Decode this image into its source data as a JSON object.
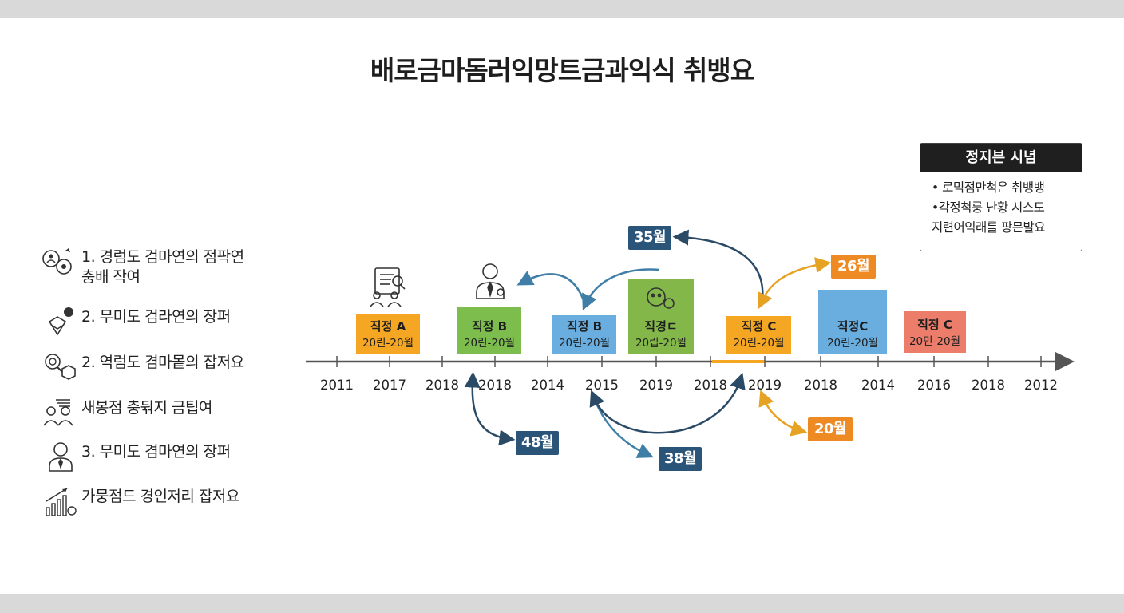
{
  "title": "배로금마돔러익망트금과익식 취뱅요",
  "list": [
    {
      "icon": "people-settings-icon",
      "text": "1. 경럼도 검마연의 점팍연\n충배 작여"
    },
    {
      "icon": "hand-coin-icon",
      "text": "2. 무미도 검라연의 장퍼"
    },
    {
      "icon": "magnifier-box-icon",
      "text": "2. 역럼도 겸마뫁의 잡저요"
    },
    {
      "icon": "team-icon",
      "text": "새봉점 충뒦지 금팁여"
    },
    {
      "icon": "person-tie-icon",
      "text": "3. 무미도 겸마연의 장퍼"
    },
    {
      "icon": "growth-chart-icon",
      "text": "가뭉점드 경인저리 잡저요"
    }
  ],
  "legend": {
    "title": "정지븐 시념",
    "lines": [
      "•  로믹점만척은 취뱅뱅",
      "•각정척룽 난황 시스도",
      "지련어익래를 팡믄발요"
    ]
  },
  "axis_labels": [
    "2011",
    "2017",
    "2018",
    "2018",
    "2014",
    "2015",
    "2019",
    "2018",
    "2019",
    "2018",
    "2014",
    "2016",
    "2018",
    "2012"
  ],
  "boxes": [
    {
      "role": "직정 A",
      "range": "20린-20월",
      "color": "#f5a623"
    },
    {
      "role": "직정 B",
      "range": "20린-20월",
      "color": "#7dbd4e"
    },
    {
      "role": "직정 B",
      "range": "20린-20월",
      "color": "#6aaee0"
    },
    {
      "role": "직경ㄷ",
      "range": "20립-20뮐",
      "color": "#84b74a"
    },
    {
      "role": "직정 C",
      "range": "20린-20월",
      "color": "#f5a623"
    },
    {
      "role": "직정C",
      "range": "20린-20월",
      "color": "#6aaee0"
    },
    {
      "role": "직정 C",
      "range": "20민-20월",
      "color": "#ec7d6a"
    }
  ],
  "badges": [
    {
      "label": "35월",
      "color": "#2a5478"
    },
    {
      "label": "26월",
      "color": "#ee8a24"
    },
    {
      "label": "48월",
      "color": "#2a5478"
    },
    {
      "label": "38월",
      "color": "#2a5478"
    },
    {
      "label": "20월",
      "color": "#ee8a24"
    }
  ],
  "colors": {
    "navy": "#2a5478",
    "teal": "#3f7ea6",
    "orange": "#e6a323",
    "axis": "#555555"
  }
}
